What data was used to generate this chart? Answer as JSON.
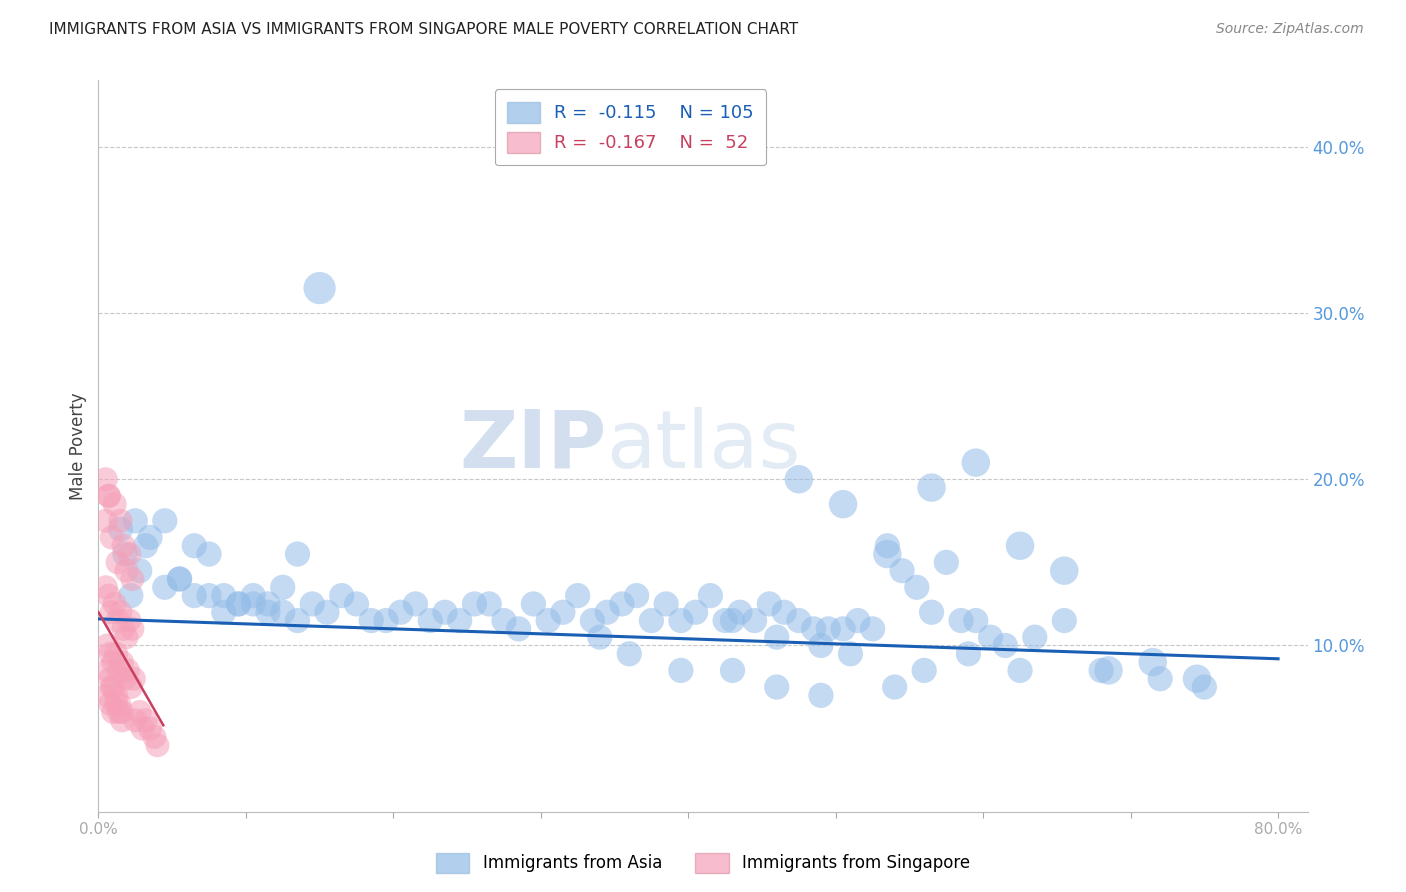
{
  "title": "IMMIGRANTS FROM ASIA VS IMMIGRANTS FROM SINGAPORE MALE POVERTY CORRELATION CHART",
  "source": "Source: ZipAtlas.com",
  "ylabel": "Male Poverty",
  "xlim": [
    0.0,
    0.82
  ],
  "ylim": [
    0.0,
    0.44
  ],
  "yticks_right": [
    0.1,
    0.2,
    0.3,
    0.4
  ],
  "ytick_labels_right": [
    "10.0%",
    "20.0%",
    "30.0%",
    "40.0%"
  ],
  "background_color": "#ffffff",
  "grid_color": "#c8c8c8",
  "blue_color": "#92bce8",
  "pink_color": "#f5a0b8",
  "blue_line_color": "#1a5fb4",
  "pink_line_color": "#c84060",
  "legend_R1": "-0.115",
  "legend_N1": "105",
  "legend_R2": "-0.167",
  "legend_N2": "52",
  "legend_label1": "Immigrants from Asia",
  "legend_label2": "Immigrants from Singapore",
  "watermark_zip": "ZIP",
  "watermark_atlas": "atlas",
  "asia_x": [
    0.018,
    0.022,
    0.028,
    0.032,
    0.015,
    0.025,
    0.035,
    0.045,
    0.055,
    0.065,
    0.075,
    0.085,
    0.095,
    0.105,
    0.115,
    0.125,
    0.135,
    0.045,
    0.055,
    0.065,
    0.075,
    0.085,
    0.095,
    0.105,
    0.115,
    0.125,
    0.135,
    0.145,
    0.155,
    0.165,
    0.175,
    0.185,
    0.195,
    0.205,
    0.215,
    0.225,
    0.235,
    0.245,
    0.255,
    0.265,
    0.275,
    0.285,
    0.295,
    0.305,
    0.315,
    0.325,
    0.335,
    0.345,
    0.355,
    0.365,
    0.375,
    0.385,
    0.395,
    0.405,
    0.415,
    0.425,
    0.435,
    0.445,
    0.455,
    0.465,
    0.475,
    0.485,
    0.495,
    0.505,
    0.515,
    0.525,
    0.535,
    0.545,
    0.555,
    0.565,
    0.575,
    0.585,
    0.595,
    0.605,
    0.615,
    0.625,
    0.475,
    0.505,
    0.535,
    0.565,
    0.595,
    0.625,
    0.655,
    0.685,
    0.715,
    0.745,
    0.655,
    0.68,
    0.72,
    0.75,
    0.635,
    0.59,
    0.56,
    0.54,
    0.43,
    0.46,
    0.49,
    0.51,
    0.43,
    0.46,
    0.49,
    0.34,
    0.36,
    0.395,
    0.15
  ],
  "asia_y": [
    0.155,
    0.13,
    0.145,
    0.16,
    0.17,
    0.175,
    0.165,
    0.175,
    0.14,
    0.16,
    0.155,
    0.13,
    0.125,
    0.125,
    0.12,
    0.135,
    0.155,
    0.135,
    0.14,
    0.13,
    0.13,
    0.12,
    0.125,
    0.13,
    0.125,
    0.12,
    0.115,
    0.125,
    0.12,
    0.13,
    0.125,
    0.115,
    0.115,
    0.12,
    0.125,
    0.115,
    0.12,
    0.115,
    0.125,
    0.125,
    0.115,
    0.11,
    0.125,
    0.115,
    0.12,
    0.13,
    0.115,
    0.12,
    0.125,
    0.13,
    0.115,
    0.125,
    0.115,
    0.12,
    0.13,
    0.115,
    0.12,
    0.115,
    0.125,
    0.12,
    0.115,
    0.11,
    0.11,
    0.11,
    0.115,
    0.11,
    0.16,
    0.145,
    0.135,
    0.12,
    0.15,
    0.115,
    0.115,
    0.105,
    0.1,
    0.085,
    0.2,
    0.185,
    0.155,
    0.195,
    0.21,
    0.16,
    0.145,
    0.085,
    0.09,
    0.08,
    0.115,
    0.085,
    0.08,
    0.075,
    0.105,
    0.095,
    0.085,
    0.075,
    0.115,
    0.105,
    0.1,
    0.095,
    0.085,
    0.075,
    0.07,
    0.105,
    0.095,
    0.085,
    0.315
  ],
  "asia_size": [
    55,
    55,
    55,
    55,
    55,
    55,
    55,
    55,
    55,
    55,
    55,
    55,
    55,
    55,
    55,
    55,
    55,
    55,
    55,
    55,
    55,
    55,
    55,
    55,
    55,
    55,
    55,
    55,
    55,
    55,
    55,
    55,
    55,
    55,
    55,
    55,
    55,
    55,
    55,
    55,
    55,
    55,
    55,
    55,
    55,
    55,
    55,
    55,
    55,
    55,
    55,
    55,
    55,
    55,
    55,
    55,
    55,
    55,
    55,
    55,
    55,
    55,
    55,
    55,
    55,
    55,
    55,
    55,
    55,
    55,
    55,
    55,
    55,
    55,
    55,
    55,
    70,
    70,
    70,
    70,
    70,
    70,
    70,
    70,
    70,
    70,
    55,
    55,
    55,
    55,
    55,
    55,
    55,
    55,
    55,
    55,
    55,
    55,
    55,
    55,
    55,
    55,
    55,
    55,
    90
  ],
  "singapore_x": [
    0.005,
    0.007,
    0.009,
    0.011,
    0.013,
    0.015,
    0.017,
    0.019,
    0.021,
    0.023,
    0.005,
    0.007,
    0.009,
    0.011,
    0.013,
    0.015,
    0.017,
    0.019,
    0.021,
    0.023,
    0.006,
    0.008,
    0.01,
    0.012,
    0.014,
    0.016,
    0.018,
    0.02,
    0.022,
    0.024,
    0.006,
    0.008,
    0.01,
    0.012,
    0.014,
    0.016,
    0.025,
    0.028,
    0.03,
    0.032,
    0.035,
    0.038,
    0.04,
    0.005,
    0.007,
    0.009,
    0.006,
    0.008,
    0.01,
    0.012,
    0.014,
    0.016
  ],
  "singapore_y": [
    0.175,
    0.19,
    0.165,
    0.185,
    0.15,
    0.175,
    0.16,
    0.145,
    0.155,
    0.14,
    0.135,
    0.13,
    0.12,
    0.125,
    0.115,
    0.12,
    0.11,
    0.105,
    0.115,
    0.11,
    0.1,
    0.095,
    0.09,
    0.095,
    0.085,
    0.09,
    0.08,
    0.085,
    0.075,
    0.08,
    0.07,
    0.065,
    0.06,
    0.065,
    0.06,
    0.055,
    0.055,
    0.06,
    0.05,
    0.055,
    0.05,
    0.045,
    0.04,
    0.2,
    0.19,
    0.075,
    0.085,
    0.08,
    0.075,
    0.07,
    0.065,
    0.06
  ],
  "singapore_size": [
    50,
    50,
    50,
    50,
    50,
    50,
    50,
    50,
    50,
    50,
    50,
    50,
    50,
    50,
    50,
    50,
    50,
    50,
    50,
    50,
    50,
    50,
    50,
    50,
    50,
    50,
    50,
    50,
    50,
    50,
    50,
    50,
    50,
    50,
    50,
    50,
    50,
    50,
    50,
    50,
    50,
    50,
    50,
    50,
    50,
    50,
    50,
    50,
    50,
    50,
    50,
    50
  ]
}
